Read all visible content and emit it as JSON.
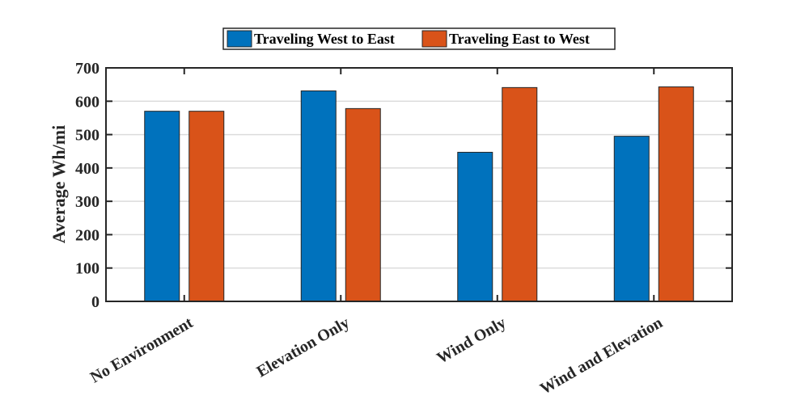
{
  "chart_data": {
    "type": "bar",
    "title": "",
    "xlabel": "",
    "ylabel": "Average Wh/mi",
    "ylim": [
      0,
      700
    ],
    "yticks": [
      "0",
      "100",
      "200",
      "300",
      "400",
      "500",
      "600",
      "700"
    ],
    "categories": [
      "No Environment",
      "Elevation Only",
      "Wind Only",
      "Wind and Elevation"
    ],
    "series": [
      {
        "name": "Traveling West to East",
        "color": "#0072BD",
        "values": [
          570,
          631,
          447,
          495
        ]
      },
      {
        "name": "Traveling East to West",
        "color": "#D95319",
        "values": [
          570,
          578,
          641,
          643
        ]
      }
    ],
    "grid": "horizontal",
    "legend_position": "top-center"
  }
}
